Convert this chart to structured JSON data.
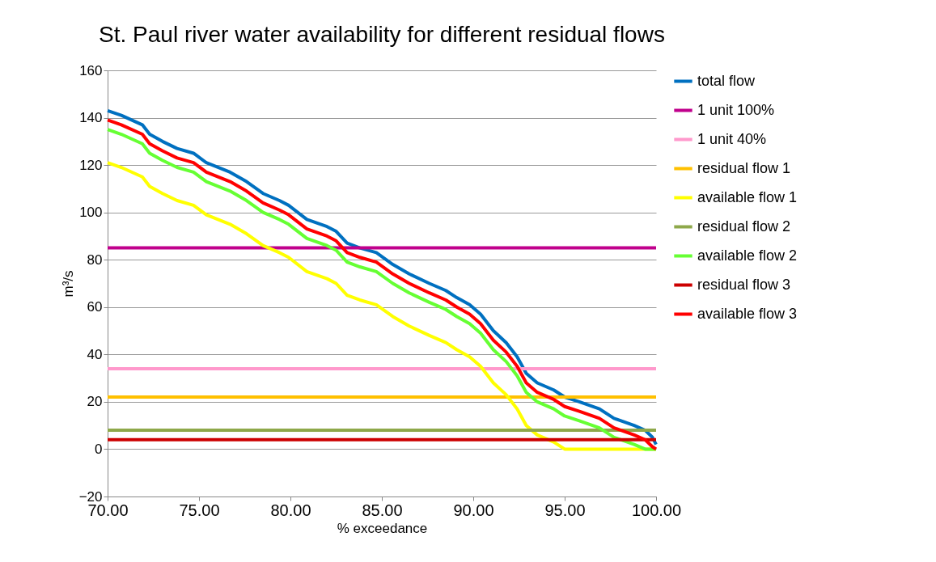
{
  "chart_data": {
    "type": "line",
    "title": "St. Paul river water availability for different residual flows",
    "xlabel": "% exceedance",
    "ylabel": "m³/s",
    "x": [
      70,
      70.75,
      71.9,
      72.3,
      73,
      73.8,
      74.7,
      75.4,
      76.7,
      77.6,
      78.5,
      79.4,
      79.9,
      80.9,
      82,
      82.5,
      83.1,
      83.8,
      84.7,
      85.6,
      86.5,
      87.6,
      88.5,
      89.1,
      89.8,
      90.4,
      91.1,
      91.8,
      92.4,
      92.9,
      93.5,
      94.4,
      95,
      95.8,
      96.9,
      97.7,
      98.8,
      99.4,
      99.8,
      100
    ],
    "series": [
      {
        "name": "total flow",
        "color": "#0070c0",
        "values": [
          143,
          141,
          137,
          133,
          130,
          127,
          125,
          121,
          117,
          113,
          108,
          105,
          103,
          97,
          94,
          92,
          87,
          85,
          83,
          78,
          74,
          70,
          67,
          64,
          61,
          57,
          50,
          45,
          39,
          32,
          28,
          25,
          22,
          20,
          17,
          13,
          10,
          8,
          5,
          2
        ]
      },
      {
        "name": "1 unit 100%",
        "color": "#c0008c",
        "values": [
          85,
          85,
          85,
          85,
          85,
          85,
          85,
          85,
          85,
          85,
          85,
          85,
          85,
          85,
          85,
          85,
          85,
          85,
          85,
          85,
          85,
          85,
          85,
          85,
          85,
          85,
          85,
          85,
          85,
          85,
          85,
          85,
          85,
          85,
          85,
          85,
          85,
          85,
          85,
          85
        ]
      },
      {
        "name": "1 unit 40%",
        "color": "#ff99cc",
        "values": [
          34,
          34,
          34,
          34,
          34,
          34,
          34,
          34,
          34,
          34,
          34,
          34,
          34,
          34,
          34,
          34,
          34,
          34,
          34,
          34,
          34,
          34,
          34,
          34,
          34,
          34,
          34,
          34,
          34,
          34,
          34,
          34,
          34,
          34,
          34,
          34,
          34,
          34,
          34,
          34
        ]
      },
      {
        "name": "residual flow 1",
        "color": "#ffc000",
        "values": [
          22,
          22,
          22,
          22,
          22,
          22,
          22,
          22,
          22,
          22,
          22,
          22,
          22,
          22,
          22,
          22,
          22,
          22,
          22,
          22,
          22,
          22,
          22,
          22,
          22,
          22,
          22,
          22,
          22,
          22,
          22,
          22,
          22,
          22,
          22,
          22,
          22,
          22,
          22,
          22
        ]
      },
      {
        "name": "available flow 1",
        "color": "#ffff00",
        "values": [
          121,
          119,
          115,
          111,
          108,
          105,
          103,
          99,
          95,
          91,
          86,
          83,
          81,
          75,
          72,
          70,
          65,
          63,
          61,
          56,
          52,
          48,
          45,
          42,
          39,
          35,
          28,
          23,
          17,
          10,
          6,
          3,
          0,
          0,
          0,
          0,
          0,
          0,
          0,
          0
        ]
      },
      {
        "name": "residual flow 2",
        "color": "#8ea84a",
        "values": [
          8,
          8,
          8,
          8,
          8,
          8,
          8,
          8,
          8,
          8,
          8,
          8,
          8,
          8,
          8,
          8,
          8,
          8,
          8,
          8,
          8,
          8,
          8,
          8,
          8,
          8,
          8,
          8,
          8,
          8,
          8,
          8,
          8,
          8,
          8,
          8,
          8,
          8,
          8,
          8
        ]
      },
      {
        "name": "available flow 2",
        "color": "#66ff33",
        "values": [
          135,
          133,
          129,
          125,
          122,
          119,
          117,
          113,
          109,
          105,
          100,
          97,
          95,
          89,
          86,
          84,
          79,
          77,
          75,
          70,
          66,
          62,
          59,
          56,
          53,
          49,
          42,
          37,
          31,
          24,
          20,
          17,
          14,
          12,
          9,
          5,
          2,
          0,
          0,
          0
        ]
      },
      {
        "name": "residual flow 3",
        "color": "#cc0000",
        "values": [
          4,
          4,
          4,
          4,
          4,
          4,
          4,
          4,
          4,
          4,
          4,
          4,
          4,
          4,
          4,
          4,
          4,
          4,
          4,
          4,
          4,
          4,
          4,
          4,
          4,
          4,
          4,
          4,
          4,
          4,
          4,
          4,
          4,
          4,
          4,
          4,
          4,
          4,
          4,
          4
        ]
      },
      {
        "name": "available flow 3",
        "color": "#ff0000",
        "values": [
          139,
          137,
          133,
          129,
          126,
          123,
          121,
          117,
          113,
          109,
          104,
          101,
          99,
          93,
          90,
          88,
          83,
          81,
          79,
          74,
          70,
          66,
          63,
          60,
          57,
          53,
          46,
          41,
          35,
          28,
          24,
          21,
          18,
          16,
          13,
          9,
          6,
          4,
          1,
          0
        ]
      }
    ],
    "xlim": [
      70,
      100
    ],
    "xticks": [
      {
        "value": 70,
        "label": "70.00"
      },
      {
        "value": 75,
        "label": "75.00"
      },
      {
        "value": 80,
        "label": "80.00"
      },
      {
        "value": 85,
        "label": "85.00"
      },
      {
        "value": 90,
        "label": "90.00"
      },
      {
        "value": 95,
        "label": "95.00"
      },
      {
        "value": 100,
        "label": "100.00"
      }
    ],
    "ylim": [
      -20,
      160
    ],
    "yticks": [
      -20,
      0,
      20,
      40,
      60,
      80,
      100,
      120,
      140,
      160
    ],
    "grid": "y",
    "legend": "right"
  }
}
